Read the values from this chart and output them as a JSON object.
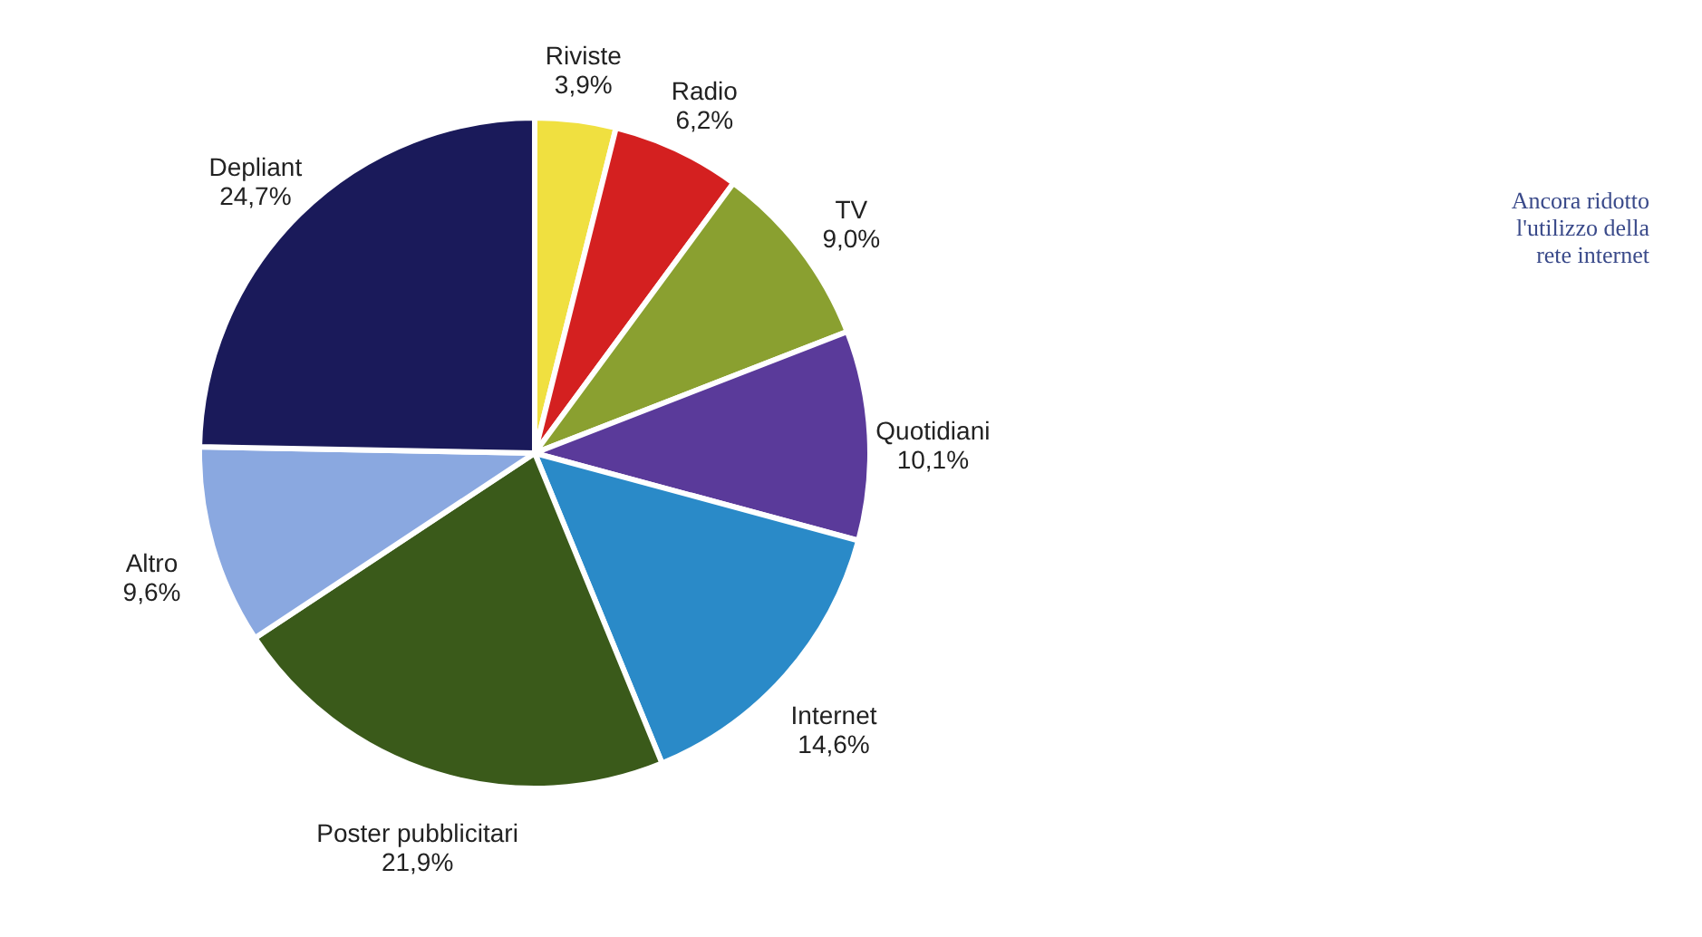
{
  "chart_data": {
    "type": "pie",
    "categories": [
      "Riviste",
      "Radio",
      "TV",
      "Quotidiani",
      "Internet",
      "Poster pubblicitari",
      "Altro",
      "Depliant"
    ],
    "values": [
      3.9,
      6.2,
      9.0,
      10.1,
      14.6,
      21.9,
      9.6,
      24.7
    ],
    "value_labels": [
      "3,9%",
      "6,2%",
      "9,0%",
      "10,1%",
      "14,6%",
      "21,9%",
      "9,6%",
      "24,7%"
    ],
    "colors": [
      "#f0e040",
      "#d42020",
      "#8aa030",
      "#5a3a9a",
      "#2a8ac8",
      "#3a5a1a",
      "#8aa8e0",
      "#1a1a5a"
    ],
    "annotations": [
      "Ancora ridotto l'utilizzo della rete internet"
    ],
    "legend": false
  }
}
